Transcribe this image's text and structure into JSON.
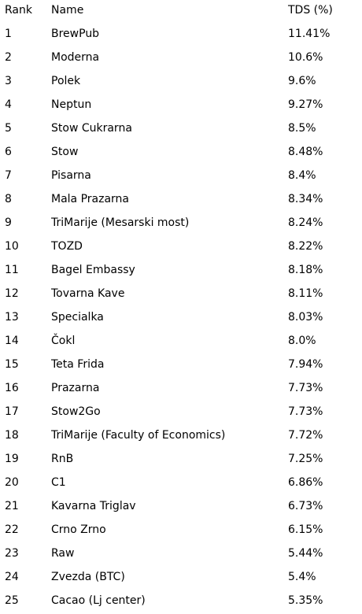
{
  "header": {
    "rank": "Rank",
    "name": "Name",
    "tds": "TDS (%)"
  },
  "rows": [
    {
      "rank": "1",
      "name": "BrewPub",
      "tds": "11.41%"
    },
    {
      "rank": "2",
      "name": "Moderna",
      "tds": "10.6%"
    },
    {
      "rank": "3",
      "name": "Polek",
      "tds": "9.6%"
    },
    {
      "rank": "4",
      "name": "Neptun",
      "tds": "9.27%"
    },
    {
      "rank": "5",
      "name": "Stow Cukrarna",
      "tds": "8.5%"
    },
    {
      "rank": "6",
      "name": "Stow",
      "tds": "8.48%"
    },
    {
      "rank": "7",
      "name": "Pisarna",
      "tds": "8.4%"
    },
    {
      "rank": "8",
      "name": "Mala Prazarna",
      "tds": "8.34%"
    },
    {
      "rank": "9",
      "name": "TriMarije (Mesarski most)",
      "tds": "8.24%"
    },
    {
      "rank": "10",
      "name": "TOZD",
      "tds": "8.22%"
    },
    {
      "rank": "11",
      "name": "Bagel Embassy",
      "tds": "8.18%"
    },
    {
      "rank": "12",
      "name": "Tovarna Kave",
      "tds": "8.11%"
    },
    {
      "rank": "13",
      "name": "Specialka",
      "tds": "8.03%"
    },
    {
      "rank": "14",
      "name": "Čokl",
      "tds": "8.0%"
    },
    {
      "rank": "15",
      "name": "Teta Frida",
      "tds": "7.94%"
    },
    {
      "rank": "16",
      "name": "Prazarna",
      "tds": "7.73%"
    },
    {
      "rank": "17",
      "name": "Stow2Go",
      "tds": "7.73%"
    },
    {
      "rank": "18",
      "name": "TriMarije (Faculty of Economics)",
      "tds": "7.72%"
    },
    {
      "rank": "19",
      "name": "RnB",
      "tds": "7.25%"
    },
    {
      "rank": "20",
      "name": "C1",
      "tds": "6.86%"
    },
    {
      "rank": "21",
      "name": "Kavarna Triglav",
      "tds": "6.73%"
    },
    {
      "rank": "22",
      "name": "Crno Zrno",
      "tds": "6.15%"
    },
    {
      "rank": "23",
      "name": "Raw",
      "tds": "5.44%"
    },
    {
      "rank": "24",
      "name": "Zvezda (BTC)",
      "tds": "5.4%"
    },
    {
      "rank": "25",
      "name": "Cacao (Lj center)",
      "tds": "5.35%"
    }
  ]
}
